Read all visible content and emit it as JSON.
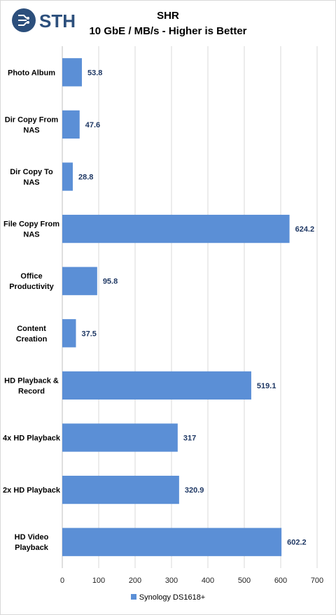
{
  "brand": {
    "logo_text": "STH"
  },
  "chart_data": {
    "type": "bar",
    "orientation": "horizontal",
    "title": "SHR",
    "subtitle": "10 GbE / MB/s - Higher is Better",
    "categories": [
      [
        "Photo Album"
      ],
      [
        "Dir Copy From",
        "NAS"
      ],
      [
        "Dir Copy To",
        "NAS"
      ],
      [
        "File Copy From",
        "NAS"
      ],
      [
        "Office",
        "Productivity"
      ],
      [
        "Content",
        "Creation"
      ],
      [
        "HD Playback &",
        "Record"
      ],
      [
        "4x HD Playback"
      ],
      [
        "2x HD Playback"
      ],
      [
        "HD Video",
        "Playback"
      ]
    ],
    "series": [
      {
        "name": "Synology DS1618+",
        "color": "#5b8fd6",
        "values": [
          53.8,
          47.6,
          28.8,
          624.2,
          95.8,
          37.5,
          519.1,
          317,
          320.9,
          602.2
        ],
        "labels": [
          "53.8",
          "47.6",
          "28.8",
          "624.2",
          "95.8",
          "37.5",
          "519.1",
          "317",
          "320.9",
          "602.2"
        ]
      }
    ],
    "xlim": [
      0,
      700
    ],
    "xticks": [
      "0",
      "100",
      "200",
      "300",
      "400",
      "500",
      "600",
      "700"
    ],
    "grid": true,
    "legend_position": "bottom"
  }
}
